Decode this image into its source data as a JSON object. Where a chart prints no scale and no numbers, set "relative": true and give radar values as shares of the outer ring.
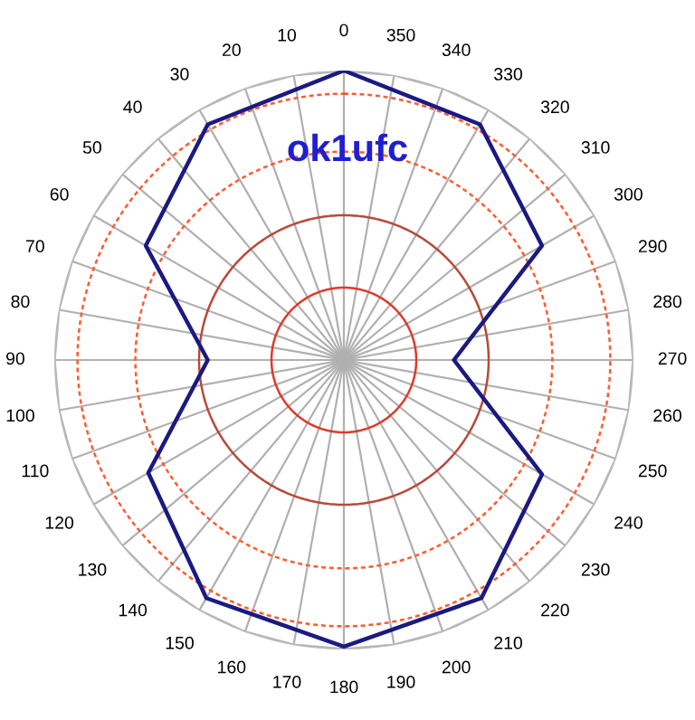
{
  "chart_data": {
    "type": "radar",
    "title": "ok1ufc",
    "relative": true,
    "grid": true,
    "legend": false,
    "marker": "none",
    "line_style": "solid",
    "categories": [
      "0",
      "350",
      "340",
      "330",
      "320",
      "310",
      "300",
      "290",
      "280",
      "270",
      "260",
      "250",
      "240",
      "230",
      "220",
      "210",
      "200",
      "190",
      "180",
      "170",
      "160",
      "150",
      "140",
      "130",
      "120",
      "110",
      "100",
      "90",
      "80",
      "70",
      "60",
      "50",
      "40",
      "30",
      "20",
      "10"
    ],
    "series": [
      {
        "color": "#1a1a80",
        "values": [
          1.0,
          null,
          null,
          0.94,
          null,
          null,
          0.79,
          null,
          null,
          0.38,
          null,
          null,
          0.79,
          null,
          null,
          0.95,
          null,
          null,
          0.99,
          null,
          null,
          0.95,
          null,
          null,
          0.78,
          null,
          null,
          0.47,
          null,
          null,
          0.79,
          null,
          null,
          0.94,
          null,
          null
        ]
      }
    ]
  }
}
